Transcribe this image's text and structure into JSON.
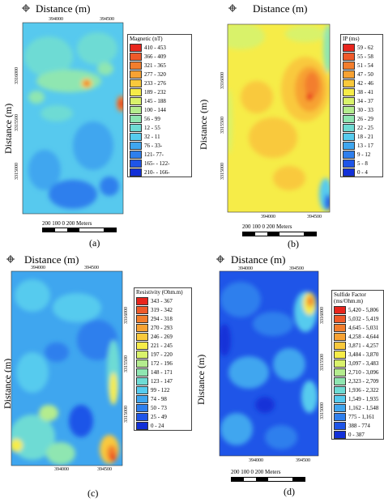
{
  "panels": [
    {
      "id": "a",
      "title": "Distance (m)",
      "ylabel": "Distance (m)",
      "xticks": [
        "394000",
        "394500"
      ],
      "yticks": [
        "3316000",
        "3315500",
        "3315000"
      ],
      "legend_title": "Magnetic (nT)",
      "legend": [
        {
          "label": "410 - 453",
          "color": "#e8251d"
        },
        {
          "label": "366 - 409",
          "color": "#ef5a2a"
        },
        {
          "label": "321 - 365",
          "color": "#f37e2d"
        },
        {
          "label": "277 - 320",
          "color": "#f7a233"
        },
        {
          "label": "233 - 276",
          "color": "#f9c93c"
        },
        {
          "label": "189 - 232",
          "color": "#f6ec48"
        },
        {
          "label": "145 - 188",
          "color": "#d9f26b"
        },
        {
          "label": "100 - 144",
          "color": "#b4ec8e"
        },
        {
          "label": "56 - 99",
          "color": "#8fe6b1"
        },
        {
          "label": "12 - 55",
          "color": "#6edbd4"
        },
        {
          "label": "32 - 11",
          "color": "#56cbee"
        },
        {
          "label": "76 - 33-",
          "color": "#3fa6ef"
        },
        {
          "label": "121- 77-",
          "color": "#2e7fed"
        },
        {
          "label": "165- - 122-",
          "color": "#1f55e8"
        },
        {
          "label": "210- - 166-",
          "color": "#1230d8"
        }
      ],
      "scale_label": "200 100   0         200 Meters",
      "label": "(a)"
    },
    {
      "id": "b",
      "title": "Distance (m)",
      "ylabel": "Distance (m)",
      "xticks": [
        "394000",
        "394500"
      ],
      "yticks": [
        "3316000",
        "3315500",
        "3315000"
      ],
      "legend_title": "IP (ms)",
      "legend": [
        {
          "label": "59 - 62",
          "color": "#e8251d"
        },
        {
          "label": "55 - 58",
          "color": "#ef5a2a"
        },
        {
          "label": "51 - 54",
          "color": "#f37e2d"
        },
        {
          "label": "47 - 50",
          "color": "#f7a233"
        },
        {
          "label": "42 - 46",
          "color": "#f9c93c"
        },
        {
          "label": "38 - 41",
          "color": "#f6ec48"
        },
        {
          "label": "34 - 37",
          "color": "#d9f26b"
        },
        {
          "label": "30 - 33",
          "color": "#b4ec8e"
        },
        {
          "label": "26 - 29",
          "color": "#8fe6b1"
        },
        {
          "label": "22 - 25",
          "color": "#6edbd4"
        },
        {
          "label": "18 - 21",
          "color": "#56cbee"
        },
        {
          "label": "13 - 17",
          "color": "#3fa6ef"
        },
        {
          "label": "9 - 12",
          "color": "#2e7fed"
        },
        {
          "label": "5 - 8",
          "color": "#1f55e8"
        },
        {
          "label": "0 - 4",
          "color": "#1230d8"
        }
      ],
      "scale_label": "200 100   0         200 Meters",
      "label": "(b)"
    },
    {
      "id": "c",
      "title": "Distance (m)",
      "ylabel": "Distance (m)",
      "xticks": [
        "394000",
        "394500"
      ],
      "yticks": [
        "3316000",
        "3315500",
        "3315000"
      ],
      "legend_title": "Resistivity (Ohm.m)",
      "legend": [
        {
          "label": "343 - 367",
          "color": "#e8251d"
        },
        {
          "label": "319 - 342",
          "color": "#ef5a2a"
        },
        {
          "label": "294 - 318",
          "color": "#f37e2d"
        },
        {
          "label": "270 - 293",
          "color": "#f7a233"
        },
        {
          "label": "246 - 269",
          "color": "#f9c93c"
        },
        {
          "label": "221 - 245",
          "color": "#f6ec48"
        },
        {
          "label": "197 - 220",
          "color": "#d9f26b"
        },
        {
          "label": "172 - 196",
          "color": "#b4ec8e"
        },
        {
          "label": "148 - 171",
          "color": "#8fe6b1"
        },
        {
          "label": "123 - 147",
          "color": "#6edbd4"
        },
        {
          "label": "99 - 122",
          "color": "#56cbee"
        },
        {
          "label": "74 - 98",
          "color": "#3fa6ef"
        },
        {
          "label": "50 - 73",
          "color": "#2e7fed"
        },
        {
          "label": "25 - 49",
          "color": "#1f55e8"
        },
        {
          "label": "0 - 24",
          "color": "#1230d8"
        }
      ],
      "scale_label": "200 100   0         200 Meters",
      "label": "(c)"
    },
    {
      "id": "d",
      "title": "Distance (m)",
      "ylabel": "Distance (m)",
      "xticks": [
        "394000",
        "394500"
      ],
      "yticks": [
        "3316000",
        "3315500",
        "3315000"
      ],
      "legend_title": "Sulfide Factor\n(ms/Ohm.m)",
      "legend": [
        {
          "label": "5,420 - 5,806",
          "color": "#e8251d"
        },
        {
          "label": "5,032 - 5,419",
          "color": "#ef5a2a"
        },
        {
          "label": "4,645 - 5,031",
          "color": "#f37e2d"
        },
        {
          "label": "4,258 - 4,644",
          "color": "#f7a233"
        },
        {
          "label": "3,871 - 4,257",
          "color": "#f9c93c"
        },
        {
          "label": "3,484 - 3,870",
          "color": "#f6ec48"
        },
        {
          "label": "3,097 - 3,483",
          "color": "#d9f26b"
        },
        {
          "label": "2,710 - 3,096",
          "color": "#b4ec8e"
        },
        {
          "label": "2,323 - 2,709",
          "color": "#8fe6b1"
        },
        {
          "label": "1,936 - 2,322",
          "color": "#6edbd4"
        },
        {
          "label": "1,549 - 1,935",
          "color": "#56cbee"
        },
        {
          "label": "1,162 - 1,548",
          "color": "#3fa6ef"
        },
        {
          "label": "775 - 1,161",
          "color": "#2e7fed"
        },
        {
          "label": "388 - 774",
          "color": "#1f55e8"
        },
        {
          "label": "0 - 387",
          "color": "#1230d8"
        }
      ],
      "scale_label": "200 100   0         200 Meters",
      "label": "(d)"
    }
  ]
}
